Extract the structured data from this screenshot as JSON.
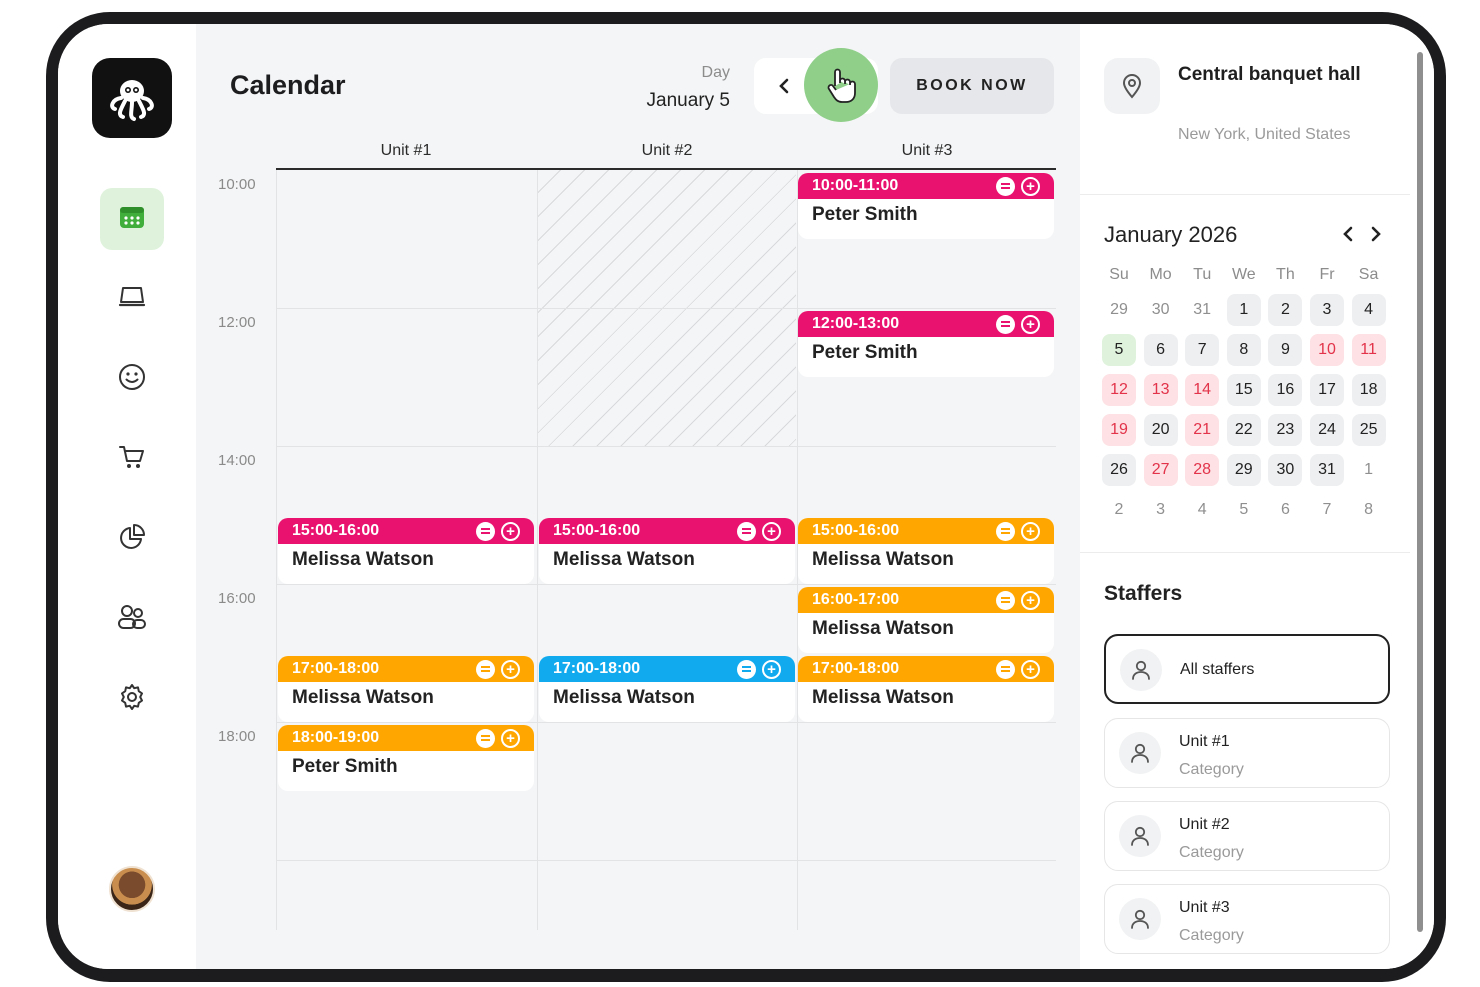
{
  "colors": {
    "pink": "#e9126e",
    "orange": "#ffa600",
    "blue": "#12aaee",
    "green_accent": "#8fcf8a",
    "active_nav": "#dff3dc"
  },
  "nav": {
    "items": [
      {
        "icon": "calendar-icon",
        "active": true
      },
      {
        "icon": "laptop-icon",
        "active": false
      },
      {
        "icon": "smiley-icon",
        "active": false
      },
      {
        "icon": "cart-icon",
        "active": false
      },
      {
        "icon": "pie-chart-icon",
        "active": false
      },
      {
        "icon": "users-icon",
        "active": false
      },
      {
        "icon": "gear-icon",
        "active": false
      }
    ]
  },
  "header": {
    "title": "Calendar",
    "view_label": "Day",
    "date": "January 5",
    "book_label": "BOOK NOW"
  },
  "columns": [
    "Unit #1",
    "Unit #2",
    "Unit #3"
  ],
  "times": [
    "10:00",
    "12:00",
    "14:00",
    "16:00",
    "18:00"
  ],
  "events": [
    {
      "col": 2,
      "start": 10,
      "time": "10:00-11:00",
      "name": "Peter Smith",
      "color": "pink"
    },
    {
      "col": 2,
      "start": 12,
      "time": "12:00-13:00",
      "name": "Peter Smith",
      "color": "pink"
    },
    {
      "col": 0,
      "start": 15,
      "time": "15:00-16:00",
      "name": "Melissa Watson",
      "color": "pink"
    },
    {
      "col": 1,
      "start": 15,
      "time": "15:00-16:00",
      "name": "Melissa Watson",
      "color": "pink"
    },
    {
      "col": 2,
      "start": 15,
      "time": "15:00-16:00",
      "name": "Melissa Watson",
      "color": "orange"
    },
    {
      "col": 2,
      "start": 16,
      "time": "16:00-17:00",
      "name": "Melissa Watson",
      "color": "orange"
    },
    {
      "col": 0,
      "start": 17,
      "time": "17:00-18:00",
      "name": "Melissa Watson",
      "color": "orange"
    },
    {
      "col": 1,
      "start": 17,
      "time": "17:00-18:00",
      "name": "Melissa Watson",
      "color": "blue"
    },
    {
      "col": 2,
      "start": 17,
      "time": "17:00-18:00",
      "name": "Melissa Watson",
      "color": "orange"
    },
    {
      "col": 0,
      "start": 18,
      "time": "18:00-19:00",
      "name": "Peter Smith",
      "color": "orange"
    }
  ],
  "location": {
    "name": "Central banquet hall",
    "address": "New York, United States"
  },
  "mini_calendar": {
    "title": "January 2026",
    "weekdays": [
      "Su",
      "Mo",
      "Tu",
      "We",
      "Th",
      "Fr",
      "Sa"
    ],
    "weeks": [
      [
        [
          "29",
          "muted"
        ],
        [
          "30",
          "muted"
        ],
        [
          "31",
          "muted"
        ],
        [
          "1",
          "gray"
        ],
        [
          "2",
          "gray"
        ],
        [
          "3",
          "gray"
        ],
        [
          "4",
          "gray"
        ]
      ],
      [
        [
          "5",
          "green"
        ],
        [
          "6",
          "gray"
        ],
        [
          "7",
          "gray"
        ],
        [
          "8",
          "gray"
        ],
        [
          "9",
          "gray"
        ],
        [
          "10",
          "red"
        ],
        [
          "11",
          "red"
        ]
      ],
      [
        [
          "12",
          "red"
        ],
        [
          "13",
          "red"
        ],
        [
          "14",
          "red"
        ],
        [
          "15",
          "gray"
        ],
        [
          "16",
          "gray"
        ],
        [
          "17",
          "gray"
        ],
        [
          "18",
          "gray"
        ]
      ],
      [
        [
          "19",
          "red"
        ],
        [
          "20",
          "gray"
        ],
        [
          "21",
          "red"
        ],
        [
          "22",
          "gray"
        ],
        [
          "23",
          "gray"
        ],
        [
          "24",
          "gray"
        ],
        [
          "25",
          "gray"
        ]
      ],
      [
        [
          "26",
          "gray"
        ],
        [
          "27",
          "red"
        ],
        [
          "28",
          "red"
        ],
        [
          "29",
          "gray"
        ],
        [
          "30",
          "gray"
        ],
        [
          "31",
          "gray"
        ],
        [
          "1",
          "muted"
        ]
      ],
      [
        [
          "2",
          "muted"
        ],
        [
          "3",
          "muted"
        ],
        [
          "4",
          "muted"
        ],
        [
          "5",
          "muted"
        ],
        [
          "6",
          "muted"
        ],
        [
          "7",
          "muted"
        ],
        [
          "8",
          "muted"
        ]
      ]
    ]
  },
  "staffers": {
    "title": "Staffers",
    "items": [
      {
        "name": "All staffers",
        "sub": "",
        "selected": true
      },
      {
        "name": "Unit #1",
        "sub": "Category",
        "selected": false
      },
      {
        "name": "Unit #2",
        "sub": "Category",
        "selected": false
      },
      {
        "name": "Unit #3",
        "sub": "Category",
        "selected": false
      }
    ]
  }
}
